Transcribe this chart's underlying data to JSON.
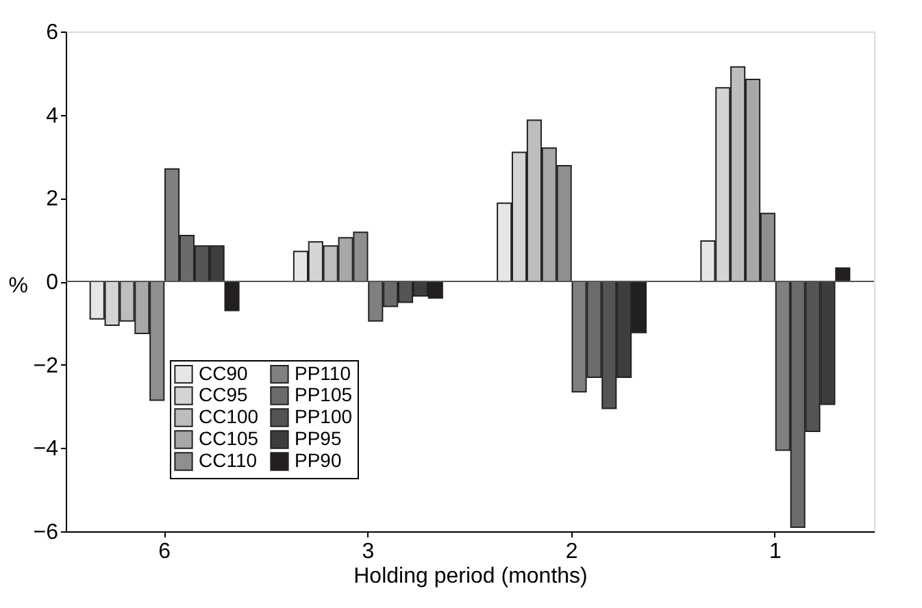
{
  "chart_data": {
    "type": "bar",
    "xlabel": "Holding period (months)",
    "ylabel": "%",
    "categories": [
      "6",
      "3",
      "2",
      "1"
    ],
    "series": [
      {
        "name": "CC90",
        "color": "#e6e6e6",
        "values": [
          -0.9,
          0.72,
          1.88,
          0.97
        ]
      },
      {
        "name": "CC95",
        "color": "#d4d4d4",
        "values": [
          -1.05,
          0.95,
          3.1,
          4.65
        ]
      },
      {
        "name": "CC100",
        "color": "#bdbdbd",
        "values": [
          -0.95,
          0.85,
          3.87,
          5.15
        ]
      },
      {
        "name": "CC105",
        "color": "#a8a8a8",
        "values": [
          -1.25,
          1.05,
          3.2,
          4.85
        ]
      },
      {
        "name": "CC110",
        "color": "#8f8f8f",
        "values": [
          -2.85,
          1.18,
          2.78,
          1.63
        ]
      },
      {
        "name": "PP110",
        "color": "#808080",
        "values": [
          2.7,
          -0.95,
          -2.65,
          -4.05
        ]
      },
      {
        "name": "PP105",
        "color": "#6b6b6b",
        "values": [
          1.1,
          -0.6,
          -2.3,
          -5.9
        ]
      },
      {
        "name": "PP100",
        "color": "#545454",
        "values": [
          0.85,
          -0.5,
          -3.05,
          -3.6
        ]
      },
      {
        "name": "PP95",
        "color": "#3d3d3d",
        "values": [
          0.85,
          -0.35,
          -2.3,
          -2.95
        ]
      },
      {
        "name": "PP90",
        "color": "#231f20",
        "values": [
          -0.7,
          -0.4,
          -1.23,
          0.32
        ]
      }
    ],
    "ylim": [
      -6,
      6
    ],
    "yticks": [
      -6,
      -4,
      -2,
      0,
      2,
      4,
      6
    ],
    "ref_lines": [
      {
        "axis": "y",
        "value": 0,
        "color": "#555555"
      }
    ],
    "grid": false,
    "legend": "bottom left"
  }
}
